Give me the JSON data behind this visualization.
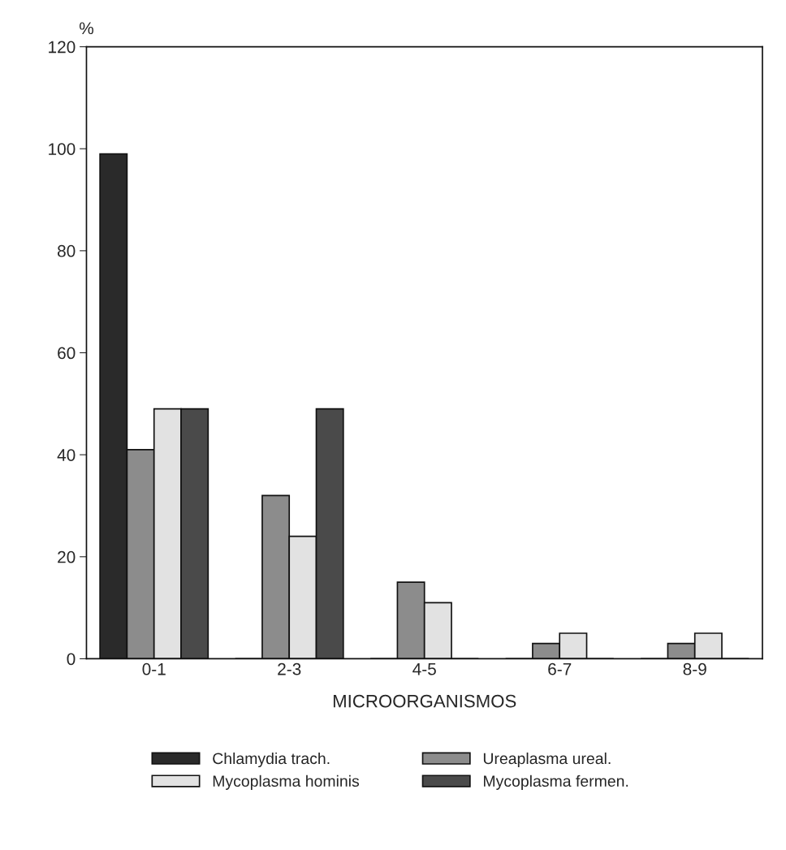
{
  "chart_data": {
    "type": "bar",
    "ylabel": "%",
    "xlabel": "MICROORGANISMOS",
    "categories": [
      "0-1",
      "2-3",
      "4-5",
      "6-7",
      "8-9"
    ],
    "series": [
      {
        "name": "Chlamydia trach.",
        "color": "#2a2a2a",
        "values": [
          99,
          0,
          0,
          0,
          0
        ]
      },
      {
        "name": "Ureaplasma ureal.",
        "color": "#8c8c8c",
        "values": [
          41,
          32,
          15,
          3,
          3
        ]
      },
      {
        "name": "Mycoplasma hominis",
        "color": "#e2e2e2",
        "values": [
          49,
          24,
          11,
          5,
          5
        ]
      },
      {
        "name": "Mycoplasma fermen.",
        "color": "#4a4a4a",
        "values": [
          49,
          49,
          0,
          0,
          0
        ]
      }
    ],
    "ylim": [
      0,
      120
    ],
    "yticks": [
      0,
      20,
      40,
      60,
      80,
      100,
      120
    ],
    "grid": false,
    "legend": "bottom"
  }
}
